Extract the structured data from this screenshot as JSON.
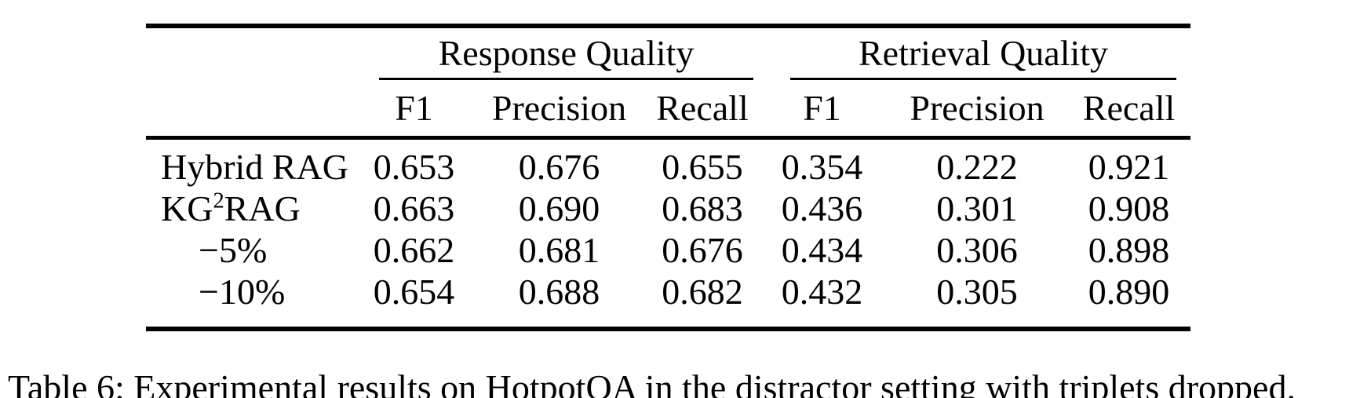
{
  "table": {
    "groups": [
      {
        "label": "Response Quality"
      },
      {
        "label": "Retrieval Quality"
      }
    ],
    "columns": [
      "F1",
      "Precision",
      "Recall",
      "F1",
      "Precision",
      "Recall"
    ],
    "rows": [
      {
        "label": {
          "pre": "Hybrid RAG",
          "sup": "",
          "post": ""
        },
        "indent": false,
        "values": [
          "0.653",
          "0.676",
          "0.655",
          "0.354",
          "0.222",
          "0.921"
        ]
      },
      {
        "label": {
          "pre": "KG",
          "sup": "2",
          "post": "RAG"
        },
        "indent": false,
        "values": [
          "0.663",
          "0.690",
          "0.683",
          "0.436",
          "0.301",
          "0.908"
        ]
      },
      {
        "label": {
          "pre": "−5%",
          "sup": "",
          "post": ""
        },
        "indent": true,
        "values": [
          "0.662",
          "0.681",
          "0.676",
          "0.434",
          "0.306",
          "0.898"
        ]
      },
      {
        "label": {
          "pre": "−10%",
          "sup": "",
          "post": ""
        },
        "indent": true,
        "values": [
          "0.654",
          "0.688",
          "0.682",
          "0.432",
          "0.305",
          "0.890"
        ]
      }
    ]
  },
  "caption": "Table 6: Experimental results on HotpotQA in the distractor setting with triplets dropped.",
  "colors": {
    "text": "#000000",
    "background": "#ffffff",
    "rule": "#000000"
  }
}
